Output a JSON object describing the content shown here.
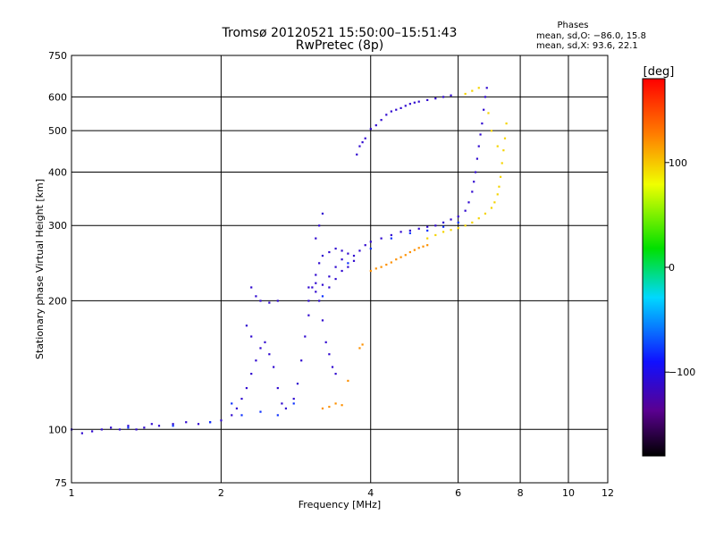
{
  "chart_data": {
    "type": "scatter",
    "title": "Tromsø 20120521 15:50:00–15:51:43",
    "subtitle": "RwPretec (8p)",
    "xlabel": "Frequency [MHz]",
    "ylabel": "Stationary phase Virtual Height [km]",
    "x_scale": "log",
    "y_scale": "log",
    "xlim": [
      1,
      12
    ],
    "ylim": [
      75,
      750
    ],
    "x_ticks": [
      1,
      2,
      4,
      6,
      8,
      10,
      12
    ],
    "x_tick_labels": [
      "1",
      "2",
      "4",
      "6",
      "8",
      "10",
      "12"
    ],
    "y_ticks": [
      75,
      100,
      200,
      300,
      400,
      500,
      600,
      750
    ],
    "y_tick_labels": [
      "75",
      "100",
      "200",
      "300",
      "400",
      "500",
      "600",
      "750"
    ],
    "grid": true,
    "stats": {
      "heading": "Phases",
      "line1": "mean, sd,O: −86.0, 15.8",
      "line2": "mean, sd,X:  93.6, 22.1"
    },
    "colorbar": {
      "label": "[deg]",
      "range": [
        -180,
        180
      ],
      "ticks": [
        100,
        0,
        -100
      ],
      "tick_labels": [
        "100",
        "0",
        "−100"
      ],
      "colormap": "rainbow (black → violet → blue → cyan → green → yellow → red)"
    },
    "series": [
      {
        "phase_deg": -110,
        "points": [
          [
            1.0,
            100
          ],
          [
            1.05,
            98
          ],
          [
            1.1,
            99
          ],
          [
            1.15,
            100
          ],
          [
            1.2,
            101
          ],
          [
            1.25,
            100
          ],
          [
            1.3,
            102
          ],
          [
            1.35,
            100
          ],
          [
            1.4,
            101
          ],
          [
            1.45,
            103
          ],
          [
            1.5,
            102
          ],
          [
            1.6,
            103
          ],
          [
            1.7,
            104
          ],
          [
            1.8,
            103
          ],
          [
            1.9,
            104
          ],
          [
            2.0,
            105
          ],
          [
            2.1,
            108
          ],
          [
            2.15,
            112
          ],
          [
            2.2,
            118
          ],
          [
            2.25,
            125
          ],
          [
            2.3,
            135
          ],
          [
            2.35,
            145
          ],
          [
            2.4,
            155
          ],
          [
            2.45,
            160
          ],
          [
            2.5,
            150
          ],
          [
            2.55,
            140
          ],
          [
            2.6,
            125
          ],
          [
            2.65,
            115
          ],
          [
            2.7,
            112
          ],
          [
            2.8,
            118
          ],
          [
            2.85,
            128
          ],
          [
            2.9,
            145
          ],
          [
            2.95,
            165
          ],
          [
            3.0,
            185
          ],
          [
            3.0,
            200
          ],
          [
            3.05,
            215
          ],
          [
            3.1,
            230
          ],
          [
            3.15,
            245
          ],
          [
            3.2,
            255
          ],
          [
            3.3,
            260
          ],
          [
            3.4,
            265
          ],
          [
            3.5,
            262
          ],
          [
            3.6,
            258
          ],
          [
            3.7,
            255
          ],
          [
            3.8,
            262
          ],
          [
            3.9,
            270
          ],
          [
            4.0,
            275
          ],
          [
            4.2,
            280
          ],
          [
            4.4,
            285
          ],
          [
            4.6,
            290
          ],
          [
            4.8,
            292
          ],
          [
            5.0,
            295
          ],
          [
            5.2,
            298
          ],
          [
            5.4,
            300
          ],
          [
            5.6,
            305
          ],
          [
            5.8,
            310
          ],
          [
            6.0,
            315
          ],
          [
            6.2,
            325
          ],
          [
            6.3,
            340
          ],
          [
            6.4,
            360
          ],
          [
            6.45,
            380
          ],
          [
            6.5,
            400
          ],
          [
            6.55,
            430
          ],
          [
            6.6,
            460
          ],
          [
            6.65,
            490
          ],
          [
            6.7,
            520
          ],
          [
            6.75,
            560
          ],
          [
            6.8,
            600
          ],
          [
            6.85,
            630
          ],
          [
            3.1,
            220
          ],
          [
            3.15,
            200
          ],
          [
            3.2,
            180
          ],
          [
            3.25,
            160
          ],
          [
            3.3,
            150
          ],
          [
            3.35,
            140
          ],
          [
            3.4,
            135
          ],
          [
            3.0,
            215
          ],
          [
            3.1,
            210
          ],
          [
            3.2,
            218
          ],
          [
            3.3,
            228
          ],
          [
            3.4,
            240
          ],
          [
            3.5,
            250
          ],
          [
            3.1,
            280
          ],
          [
            3.15,
            300
          ],
          [
            3.2,
            320
          ],
          [
            3.3,
            215
          ],
          [
            3.4,
            225
          ],
          [
            3.5,
            235
          ],
          [
            3.6,
            240
          ],
          [
            3.7,
            248
          ],
          [
            3.75,
            440
          ],
          [
            3.8,
            460
          ],
          [
            3.85,
            470
          ],
          [
            3.9,
            480
          ],
          [
            4.0,
            505
          ],
          [
            4.1,
            515
          ],
          [
            4.2,
            530
          ],
          [
            4.3,
            545
          ],
          [
            4.4,
            555
          ],
          [
            4.5,
            560
          ],
          [
            4.6,
            565
          ],
          [
            4.7,
            572
          ],
          [
            4.8,
            578
          ],
          [
            4.9,
            582
          ],
          [
            5.0,
            585
          ],
          [
            5.2,
            590
          ],
          [
            5.4,
            595
          ],
          [
            5.6,
            600
          ],
          [
            5.8,
            605
          ],
          [
            2.3,
            215
          ],
          [
            2.35,
            205
          ],
          [
            2.4,
            200
          ],
          [
            2.5,
            198
          ],
          [
            2.6,
            200
          ],
          [
            2.25,
            175
          ],
          [
            2.3,
            165
          ]
        ],
        "x": [],
        "y": []
      },
      {
        "phase_deg": 120,
        "points": [
          [
            4.0,
            235
          ],
          [
            4.1,
            238
          ],
          [
            4.2,
            240
          ],
          [
            4.3,
            243
          ],
          [
            4.4,
            246
          ],
          [
            4.5,
            250
          ],
          [
            4.6,
            253
          ],
          [
            4.7,
            256
          ],
          [
            4.8,
            260
          ],
          [
            4.9,
            263
          ],
          [
            5.0,
            266
          ],
          [
            5.1,
            268
          ],
          [
            5.2,
            270
          ],
          [
            3.2,
            112
          ],
          [
            3.3,
            113
          ],
          [
            3.4,
            115
          ],
          [
            3.5,
            114
          ],
          [
            3.6,
            130
          ],
          [
            3.8,
            155
          ],
          [
            3.85,
            158
          ]
        ],
        "x": [],
        "y": []
      },
      {
        "phase_deg": 95,
        "points": [
          [
            5.2,
            280
          ],
          [
            5.4,
            285
          ],
          [
            5.6,
            290
          ],
          [
            5.8,
            293
          ],
          [
            6.0,
            296
          ],
          [
            6.2,
            300
          ],
          [
            6.4,
            305
          ],
          [
            6.6,
            312
          ],
          [
            6.8,
            320
          ],
          [
            7.0,
            330
          ],
          [
            7.1,
            340
          ],
          [
            7.2,
            355
          ],
          [
            7.25,
            370
          ],
          [
            7.3,
            390
          ],
          [
            7.35,
            420
          ],
          [
            7.4,
            450
          ],
          [
            7.45,
            480
          ],
          [
            7.5,
            520
          ],
          [
            6.2,
            610
          ],
          [
            6.4,
            620
          ],
          [
            6.6,
            630
          ],
          [
            6.9,
            550
          ],
          [
            7.0,
            500
          ],
          [
            7.2,
            460
          ]
        ],
        "x": [],
        "y": []
      },
      {
        "phase_deg": -80,
        "points": [
          [
            1.3,
            101
          ],
          [
            1.6,
            102
          ],
          [
            1.9,
            104
          ],
          [
            2.1,
            115
          ],
          [
            2.2,
            108
          ],
          [
            2.4,
            110
          ],
          [
            2.6,
            108
          ],
          [
            2.8,
            115
          ],
          [
            3.2,
            205
          ],
          [
            3.6,
            245
          ],
          [
            4.0,
            265
          ],
          [
            4.4,
            280
          ],
          [
            4.8,
            288
          ],
          [
            5.2,
            292
          ],
          [
            5.6,
            298
          ],
          [
            6.0,
            305
          ]
        ],
        "x": [],
        "y": []
      }
    ]
  }
}
